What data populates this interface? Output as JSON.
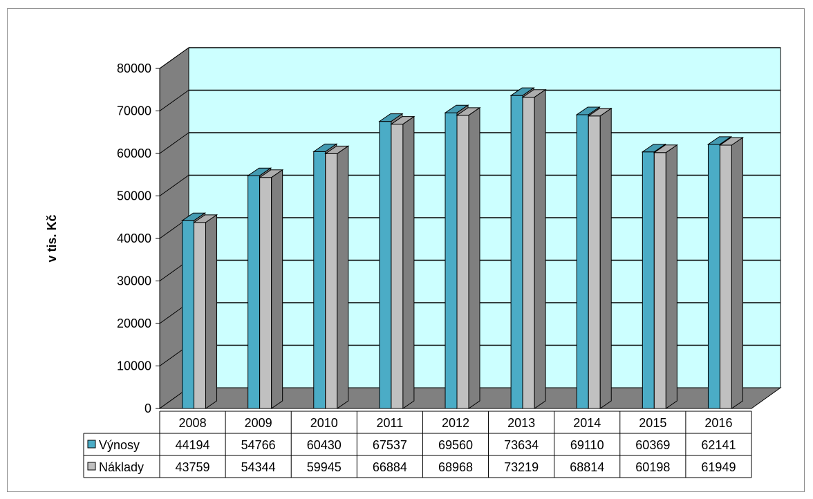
{
  "chart_data": {
    "type": "bar",
    "title": "",
    "xlabel": "",
    "ylabel": "v tis. Kč",
    "ylim": [
      0,
      80000
    ],
    "yticks": [
      0,
      10000,
      20000,
      30000,
      40000,
      50000,
      60000,
      70000,
      80000
    ],
    "grid": true,
    "legend": "in data table",
    "categories": [
      "2008",
      "2009",
      "2010",
      "2011",
      "2012",
      "2013",
      "2014",
      "2015",
      "2016"
    ],
    "series": [
      {
        "name": "Výnosy",
        "values": [
          44194,
          54766,
          60430,
          67537,
          69560,
          73634,
          69110,
          60369,
          62141
        ],
        "color": "#4BACC6"
      },
      {
        "name": "Náklady",
        "values": [
          43759,
          54344,
          59945,
          66884,
          68968,
          73219,
          68814,
          60198,
          61949
        ],
        "color": "#C0C0C0"
      }
    ]
  },
  "colors": {
    "wall": "#CCFFFF",
    "side_wall": "#808080",
    "floor": "#808080"
  }
}
